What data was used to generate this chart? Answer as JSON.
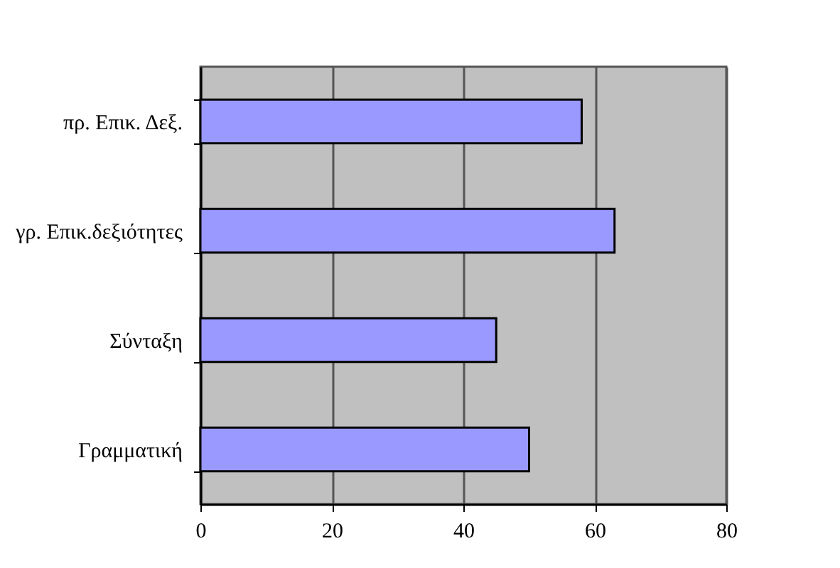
{
  "chart_data": {
    "type": "bar",
    "orientation": "horizontal",
    "categories": [
      "πρ. Επικ. Δεξ.",
      "γρ. Επικ.δεξιότητες",
      "Σύνταξη",
      "Γραμματική"
    ],
    "values": [
      58,
      63,
      45,
      50
    ],
    "color": "#9999ff",
    "xlim": [
      0,
      80
    ],
    "xticks": [
      0,
      20,
      40,
      60,
      80
    ],
    "grid": "x"
  }
}
